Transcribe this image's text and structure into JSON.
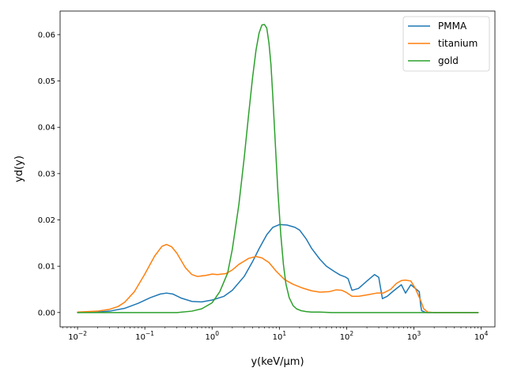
{
  "chart_data": {
    "type": "line",
    "xlabel": "y(keV/µm)",
    "ylabel": "yd(y)",
    "x_scale": "log",
    "xlim": [
      0.0055,
      16000
    ],
    "ylim": [
      -0.0031,
      0.0651
    ],
    "grid": false,
    "legend_position": "top-right",
    "x_ticks": [
      {
        "value": 0.01,
        "base": "10",
        "exp": "−2"
      },
      {
        "value": 0.1,
        "base": "10",
        "exp": "−1"
      },
      {
        "value": 1,
        "base": "10",
        "exp": "0"
      },
      {
        "value": 10,
        "base": "10",
        "exp": "1"
      },
      {
        "value": 100,
        "base": "10",
        "exp": "2"
      },
      {
        "value": 1000,
        "base": "10",
        "exp": "3"
      },
      {
        "value": 10000,
        "base": "10",
        "exp": "4"
      }
    ],
    "y_ticks": [
      {
        "value": 0.0,
        "label": "0.00"
      },
      {
        "value": 0.01,
        "label": "0.01"
      },
      {
        "value": 0.02,
        "label": "0.02"
      },
      {
        "value": 0.03,
        "label": "0.03"
      },
      {
        "value": 0.04,
        "label": "0.04"
      },
      {
        "value": 0.05,
        "label": "0.05"
      },
      {
        "value": 0.06,
        "label": "0.06"
      }
    ],
    "series": [
      {
        "name": "PMMA",
        "color": "#1f77b4",
        "x": [
          0.01,
          0.02,
          0.03,
          0.05,
          0.08,
          0.12,
          0.17,
          0.21,
          0.26,
          0.35,
          0.5,
          0.7,
          1.0,
          1.5,
          2.0,
          3.0,
          4.0,
          5.0,
          6.5,
          8.0,
          10.0,
          13.0,
          17.0,
          20.0,
          25.0,
          30.0,
          40.0,
          50.0,
          65.0,
          80.0,
          95.0,
          105.0,
          120.0,
          150.0,
          200.0,
          260.0,
          300.0,
          340.0,
          400.0,
          500.0,
          650.0,
          750.0,
          900.0,
          1050.0,
          1200.0,
          1260.0,
          1300.0,
          1500.0,
          2000.0,
          5000.0,
          9000.0
        ],
        "y": [
          0.0,
          0.0001,
          0.0003,
          0.0009,
          0.002,
          0.0032,
          0.004,
          0.0042,
          0.004,
          0.0031,
          0.0024,
          0.0023,
          0.0027,
          0.0035,
          0.0048,
          0.0078,
          0.011,
          0.0138,
          0.0168,
          0.0184,
          0.019,
          0.0189,
          0.0184,
          0.0178,
          0.0159,
          0.0139,
          0.0115,
          0.01,
          0.0089,
          0.0081,
          0.0077,
          0.0073,
          0.0048,
          0.0052,
          0.0068,
          0.0082,
          0.0076,
          0.003,
          0.0035,
          0.0047,
          0.006,
          0.0042,
          0.006,
          0.0052,
          0.0045,
          0.0016,
          0.0004,
          0.0,
          0.0,
          0.0,
          0.0
        ]
      },
      {
        "name": "titanium",
        "color": "#ff7f0e",
        "x": [
          0.01,
          0.02,
          0.03,
          0.04,
          0.05,
          0.07,
          0.1,
          0.14,
          0.18,
          0.21,
          0.25,
          0.3,
          0.4,
          0.5,
          0.6,
          0.8,
          1.0,
          1.2,
          1.6,
          2.0,
          2.5,
          3.0,
          3.5,
          4.5,
          5.5,
          7.0,
          9.0,
          12.0,
          16.0,
          22.0,
          30.0,
          40.0,
          55.0,
          70.0,
          85.0,
          100.0,
          120.0,
          150.0,
          200.0,
          280.0,
          350.0,
          450.0,
          550.0,
          650.0,
          750.0,
          900.0,
          1050.0,
          1250.0,
          1400.0,
          1600.0,
          2000.0,
          5000.0,
          9000.0
        ],
        "y": [
          0.0001,
          0.0003,
          0.0007,
          0.0013,
          0.0022,
          0.0045,
          0.0083,
          0.0122,
          0.0143,
          0.0147,
          0.0142,
          0.0128,
          0.0097,
          0.0082,
          0.0078,
          0.008,
          0.0083,
          0.0082,
          0.0084,
          0.0092,
          0.0104,
          0.0111,
          0.0117,
          0.0121,
          0.0118,
          0.0108,
          0.0089,
          0.0071,
          0.0061,
          0.0053,
          0.0047,
          0.0044,
          0.0045,
          0.0049,
          0.0048,
          0.0043,
          0.0035,
          0.0035,
          0.0038,
          0.0042,
          0.0042,
          0.005,
          0.0063,
          0.0069,
          0.007,
          0.0068,
          0.0052,
          0.0027,
          0.0008,
          0.0001,
          0.0,
          0.0,
          0.0
        ]
      },
      {
        "name": "gold",
        "color": "#2ca02c",
        "x": [
          0.01,
          0.1,
          0.3,
          0.5,
          0.7,
          1.0,
          1.3,
          1.7,
          2.0,
          2.5,
          3.0,
          3.5,
          4.0,
          4.5,
          5.0,
          5.5,
          6.0,
          6.5,
          7.0,
          7.5,
          8.0,
          8.7,
          9.5,
          10.5,
          11.5,
          12.5,
          14.0,
          16.0,
          18.0,
          21.0,
          25.0,
          30.0,
          40.0,
          60.0,
          100.0,
          1000.0,
          9000.0
        ],
        "y": [
          0.0,
          0.0,
          0.0,
          0.0003,
          0.0008,
          0.0021,
          0.0045,
          0.0085,
          0.0137,
          0.0233,
          0.0334,
          0.0429,
          0.0508,
          0.0567,
          0.0604,
          0.0621,
          0.0622,
          0.0614,
          0.0582,
          0.0535,
          0.0465,
          0.0365,
          0.0262,
          0.0168,
          0.0103,
          0.0062,
          0.0032,
          0.0015,
          0.0008,
          0.0004,
          0.0002,
          0.0001,
          0.0001,
          0.0,
          0.0,
          0.0,
          0.0
        ]
      }
    ]
  }
}
